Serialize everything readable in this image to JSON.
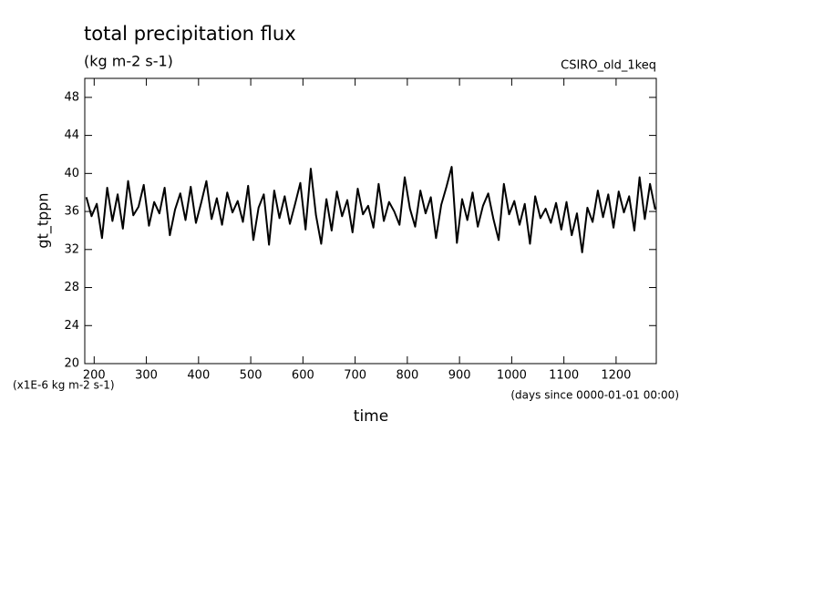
{
  "chart_data": {
    "type": "line",
    "title": "total precipitation flux",
    "subtitle": "(kg m-2 s-1)",
    "annotation": "CSIRO_old_1keq",
    "y_label": "gt_tppn",
    "x_label": "time",
    "y_units": "(x1E-6 kg m-2 s-1)",
    "x_units": "(days since 0000-01-01 00:00)",
    "x": [
      185,
      195,
      205,
      215,
      225,
      235,
      245,
      255,
      265,
      275,
      285,
      295,
      305,
      315,
      325,
      335,
      345,
      355,
      365,
      375,
      385,
      395,
      405,
      415,
      425,
      435,
      445,
      455,
      465,
      475,
      485,
      495,
      505,
      515,
      525,
      535,
      545,
      555,
      565,
      575,
      585,
      595,
      605,
      615,
      625,
      635,
      645,
      655,
      665,
      675,
      685,
      695,
      705,
      715,
      725,
      735,
      745,
      755,
      765,
      775,
      785,
      795,
      805,
      815,
      825,
      835,
      845,
      855,
      865,
      875,
      885,
      895,
      905,
      915,
      925,
      935,
      945,
      955,
      965,
      975,
      985,
      995,
      1005,
      1015,
      1025,
      1035,
      1045,
      1055,
      1065,
      1075,
      1085,
      1095,
      1105,
      1115,
      1125,
      1135,
      1145,
      1155,
      1165,
      1175,
      1185,
      1195,
      1205,
      1215,
      1225,
      1235,
      1245,
      1255,
      1265,
      1275
    ],
    "series": [
      {
        "name": "gt_tppn",
        "color": "#000000",
        "values": [
          37.5,
          35.5,
          36.8,
          33.2,
          38.5,
          35.0,
          37.8,
          34.2,
          39.2,
          35.6,
          36.5,
          38.8,
          34.5,
          37.0,
          35.8,
          38.5,
          33.5,
          36.2,
          37.9,
          35.1,
          38.6,
          34.8,
          36.9,
          39.2,
          35.2,
          37.4,
          34.6,
          38.0,
          35.9,
          37.1,
          34.9,
          38.7,
          33.0,
          36.4,
          37.8,
          32.5,
          38.2,
          35.3,
          37.6,
          34.7,
          36.8,
          39.0,
          34.1,
          40.5,
          35.6,
          32.6,
          37.3,
          34.0,
          38.1,
          35.5,
          37.2,
          33.8,
          38.4,
          35.7,
          36.6,
          34.3,
          38.9,
          35.0,
          37.0,
          36.0,
          34.6,
          39.6,
          36.3,
          34.4,
          38.2,
          35.8,
          37.5,
          33.2,
          36.7,
          38.6,
          40.7,
          32.7,
          37.3,
          35.1,
          38.0,
          34.4,
          36.6,
          37.9,
          35.2,
          33.0,
          38.9,
          35.7,
          37.1,
          34.6,
          36.8,
          32.6,
          37.6,
          35.3,
          36.3,
          34.8,
          36.9,
          34.1,
          37.0,
          33.5,
          35.8,
          31.7,
          36.4,
          34.9,
          38.2,
          35.4,
          37.8,
          34.3,
          38.1,
          35.9,
          37.6,
          34.0,
          39.6,
          35.2,
          38.9,
          36.2
        ]
      }
    ],
    "xlim": [
      182,
      1277
    ],
    "ylim": [
      20,
      50
    ],
    "xticks": [
      200,
      300,
      400,
      500,
      600,
      700,
      800,
      900,
      1000,
      1100,
      1200
    ],
    "yticks": [
      20,
      24,
      28,
      32,
      36,
      40,
      44,
      48
    ]
  }
}
